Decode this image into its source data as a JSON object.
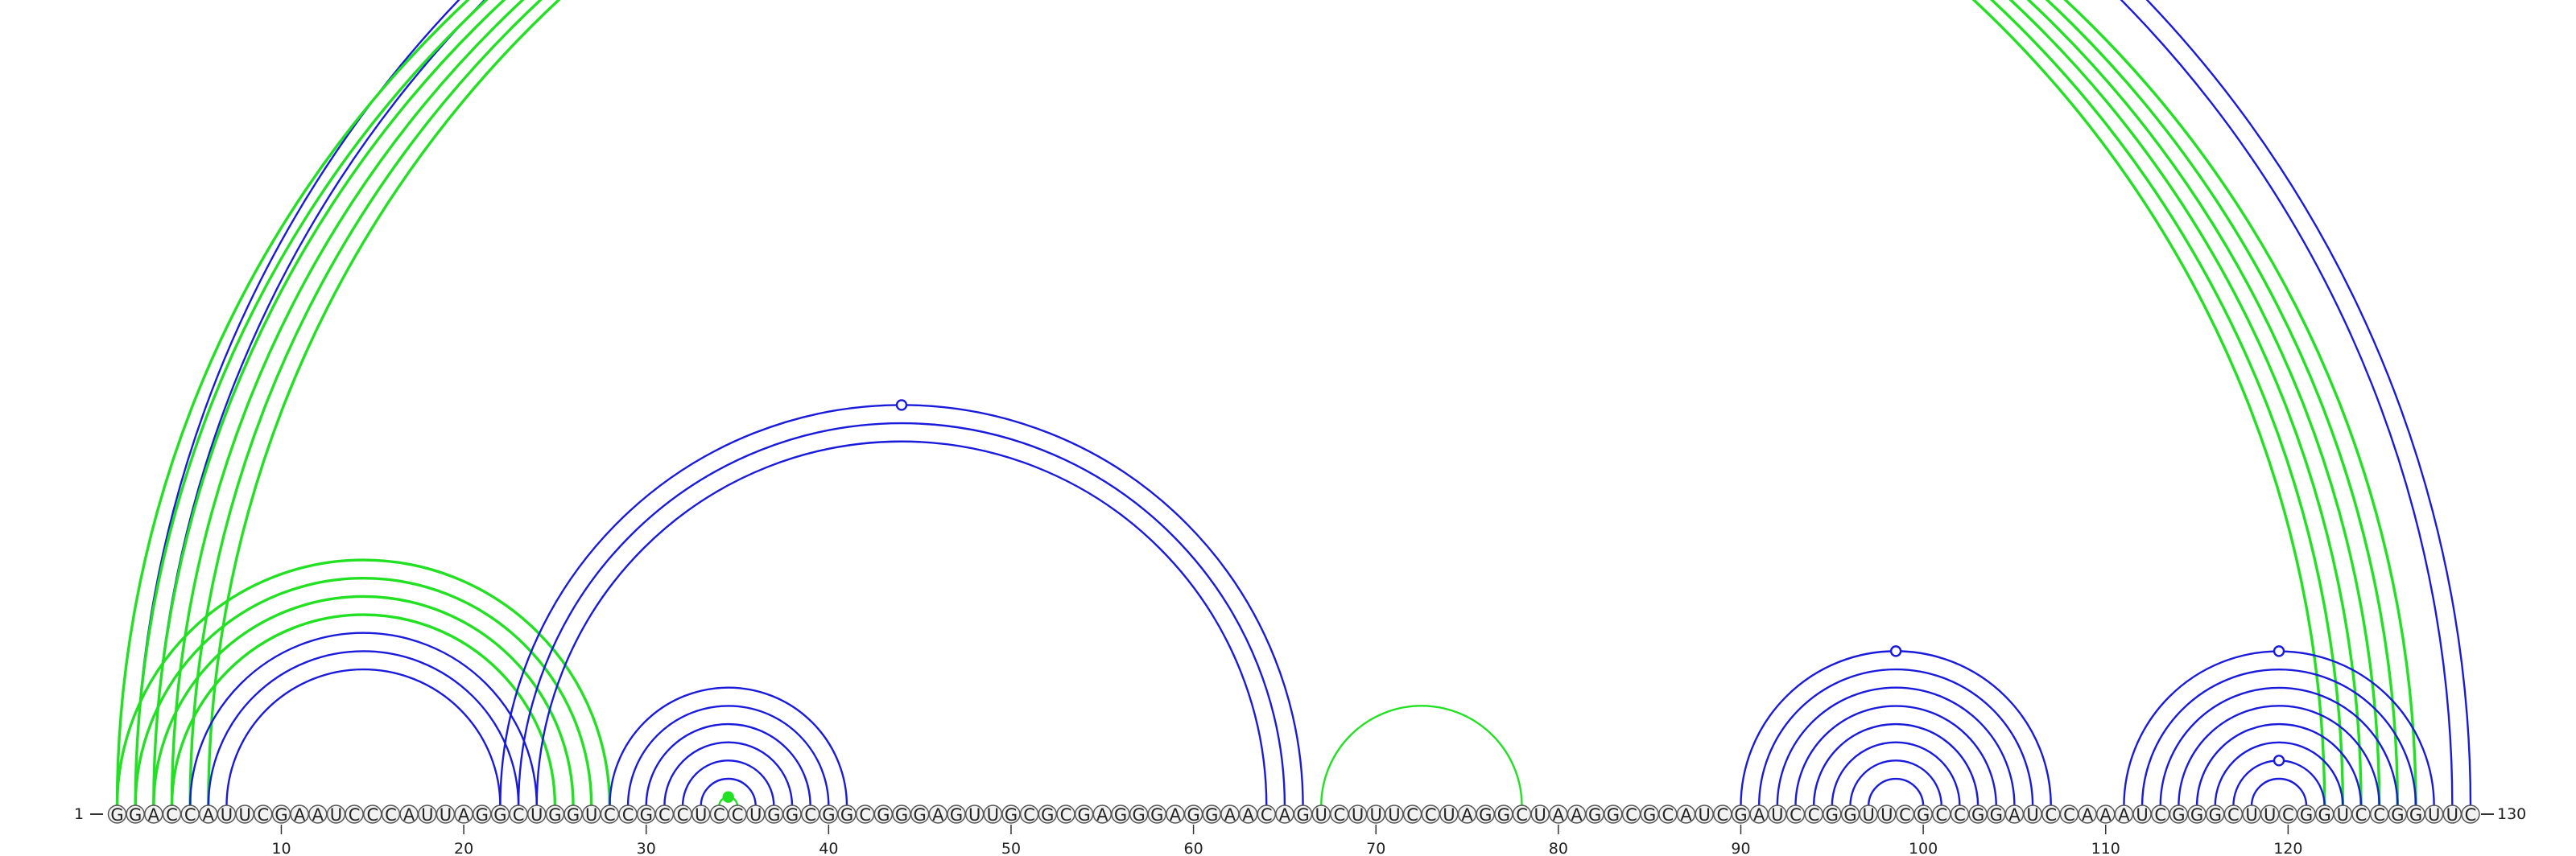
{
  "sequence": "GGACCAUUCGAAUCCCAUUAGGCUGGUCCGCCUCCUGGCGGCGGGAGUUGCGCGAGGGAGGAACAGUCUUUCCUAGGCUAAGGCGCAUCGAUCCGGUUCGCCGGAUCCAAAUCGGGCUUCGGUCCGGUUC",
  "start_label": "1",
  "end_label": "130",
  "ticks": [
    10,
    20,
    30,
    40,
    50,
    60,
    70,
    80,
    90,
    100,
    110,
    120
  ],
  "colors": {
    "blue": "#1a1adb",
    "green": "#22e022"
  },
  "arc_groups": [
    {
      "color": "blue",
      "style": "thin",
      "bases": [
        [
          2,
          130
        ],
        [
          3,
          129
        ]
      ],
      "loop_marker": "open"
    },
    {
      "color": "green",
      "style": "thick",
      "bases": [
        [
          1,
          122
        ],
        [
          2,
          123
        ],
        [
          3,
          124
        ],
        [
          4,
          125
        ],
        [
          5,
          126
        ],
        [
          6,
          127
        ]
      ]
    },
    {
      "color": "green",
      "style": "thick",
      "bases": [
        [
          1,
          28
        ],
        [
          2,
          27
        ],
        [
          3,
          26
        ],
        [
          4,
          25
        ]
      ]
    },
    {
      "color": "blue",
      "style": "thin",
      "bases": [
        [
          5,
          24
        ],
        [
          6,
          23
        ],
        [
          7,
          22
        ]
      ]
    },
    {
      "color": "blue",
      "style": "thin",
      "bases": [
        [
          22,
          66
        ],
        [
          23,
          65
        ],
        [
          24,
          64
        ]
      ],
      "loop_marker": "open"
    },
    {
      "color": "blue",
      "style": "thin",
      "bases": [
        [
          28,
          41
        ],
        [
          29,
          40
        ],
        [
          30,
          39
        ],
        [
          31,
          38
        ],
        [
          32,
          37
        ],
        [
          33,
          36
        ]
      ]
    },
    {
      "color": "green",
      "style": "thin",
      "bases": [
        [
          34,
          35
        ]
      ],
      "loop_marker": "filled"
    },
    {
      "color": "green",
      "style": "thin",
      "bases": [
        [
          67,
          78
        ]
      ]
    },
    {
      "color": "blue",
      "style": "thin",
      "bases": [
        [
          90,
          107
        ],
        [
          91,
          106
        ],
        [
          92,
          105
        ],
        [
          93,
          104
        ],
        [
          94,
          103
        ],
        [
          95,
          102
        ],
        [
          96,
          101
        ],
        [
          97,
          100
        ]
      ],
      "loop_marker": "open"
    },
    {
      "color": "blue",
      "style": "thin",
      "bases": [
        [
          111,
          128
        ],
        [
          112,
          127
        ],
        [
          113,
          126
        ],
        [
          114,
          125
        ],
        [
          115,
          124
        ],
        [
          116,
          123
        ]
      ],
      "loop_marker": "open"
    },
    {
      "color": "blue",
      "style": "thin",
      "bases": [
        [
          117,
          122
        ],
        [
          118,
          121
        ]
      ],
      "loop_marker": "open"
    }
  ]
}
